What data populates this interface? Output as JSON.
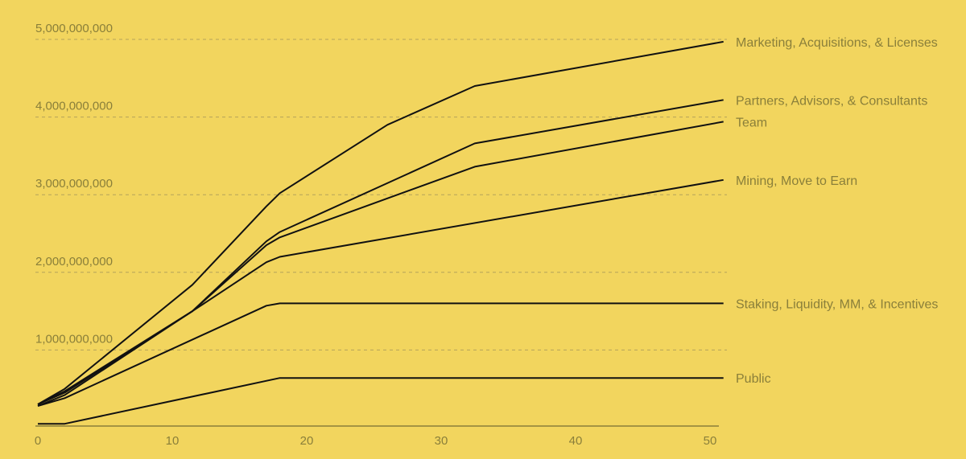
{
  "chart_data": {
    "type": "line",
    "title": "",
    "xlabel": "",
    "ylabel": "",
    "xlim": [
      0,
      51
    ],
    "ylim": [
      0,
      5000000000
    ],
    "grid": "horizontal-dashed",
    "legend": "right (end-of-line labels)",
    "x_ticks": [
      "0",
      "10",
      "20",
      "30",
      "40",
      "50"
    ],
    "y_ticks": [
      "1,000,000,000",
      "2,000,000,000",
      "3,000,000,000",
      "4,000,000,000",
      "5,000,000,000"
    ],
    "colors": {
      "background": "#f2d55e",
      "line": "#111111",
      "text": "#8a7f3a"
    },
    "series": [
      {
        "name": "Public",
        "points": [
          [
            0,
            50000000
          ],
          [
            2,
            50000000
          ],
          [
            18,
            640000000
          ],
          [
            51,
            640000000
          ]
        ]
      },
      {
        "name": "Staking, Liquidity, MM, & Incentives",
        "points": [
          [
            0,
            280000000
          ],
          [
            2,
            380000000
          ],
          [
            17,
            1570000000
          ],
          [
            18,
            1600000000
          ],
          [
            51,
            1600000000
          ]
        ]
      },
      {
        "name": "Mining, Move to Earn",
        "points": [
          [
            0,
            280000000
          ],
          [
            2,
            420000000
          ],
          [
            11.5,
            1500000000
          ],
          [
            17,
            2130000000
          ],
          [
            18,
            2200000000
          ],
          [
            51,
            3190000000
          ]
        ]
      },
      {
        "name": "Team",
        "points": [
          [
            0,
            300000000
          ],
          [
            2,
            450000000
          ],
          [
            11.5,
            1500000000
          ],
          [
            17,
            2350000000
          ],
          [
            18,
            2450000000
          ],
          [
            32.5,
            3360000000
          ],
          [
            51,
            3940000000
          ]
        ]
      },
      {
        "name": "Partners, Advisors, & Consultants",
        "points": [
          [
            0,
            300000000
          ],
          [
            2,
            470000000
          ],
          [
            11.5,
            1500000000
          ],
          [
            17,
            2400000000
          ],
          [
            18,
            2520000000
          ],
          [
            32.5,
            3660000000
          ],
          [
            51,
            4220000000
          ]
        ]
      },
      {
        "name": "Marketing, Acquisitions, & Licenses",
        "points": [
          [
            0,
            300000000
          ],
          [
            2,
            500000000
          ],
          [
            11.5,
            1840000000
          ],
          [
            17,
            2850000000
          ],
          [
            18,
            3020000000
          ],
          [
            26,
            3900000000
          ],
          [
            32.5,
            4400000000
          ],
          [
            51,
            4970000000
          ]
        ]
      }
    ]
  }
}
